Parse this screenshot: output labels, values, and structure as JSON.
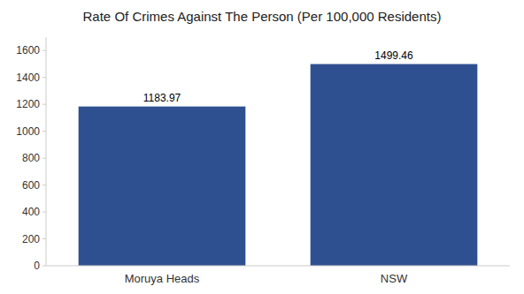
{
  "chart_data": {
    "type": "bar",
    "title": "Rate Of Crimes Against The Person (Per 100,000 Residents)",
    "categories": [
      "Moruya Heads",
      "NSW"
    ],
    "values": [
      1183.97,
      1499.46
    ],
    "color": "#2e5090",
    "ylim": [
      0,
      1700
    ],
    "yticks": [
      0,
      200,
      400,
      600,
      800,
      1000,
      1200,
      1400,
      1600
    ],
    "grid": false,
    "data_labels": true
  }
}
